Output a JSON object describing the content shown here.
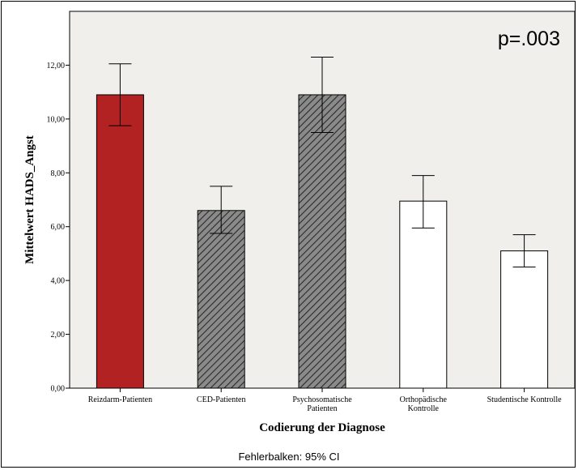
{
  "chart_data": {
    "type": "bar",
    "categories": [
      [
        "Reizdarm-Patienten"
      ],
      [
        "CED-Patienten"
      ],
      [
        "Psychosomatische",
        "Patienten"
      ],
      [
        "Orthopädische",
        "Kontrolle"
      ],
      [
        "Studentische Kontrolle"
      ]
    ],
    "values": [
      10.9,
      6.6,
      10.9,
      6.95,
      5.1
    ],
    "ci_low": [
      9.75,
      5.75,
      9.5,
      5.95,
      4.5
    ],
    "ci_high": [
      12.05,
      7.5,
      12.3,
      7.9,
      5.7
    ],
    "fills": [
      "solid-red",
      "hatched-gray",
      "hatched-gray",
      "white",
      "white"
    ],
    "colors": {
      "red": "#b22222",
      "gray": "#7a7a7a",
      "plot_bg": "#f0efeb"
    },
    "ylim": [
      0,
      14
    ],
    "yticks": [
      "0,00",
      "2,00",
      "4,00",
      "6,00",
      "8,00",
      "10,00",
      "12,00"
    ],
    "ytick_values": [
      0,
      2,
      4,
      6,
      8,
      10,
      12
    ],
    "ylabel": "Mittelwert HADS_Angst",
    "xlabel": "Codierung der Diagnose",
    "annotation": "p=.003",
    "footer": "Fehlerbalken: 95% CI"
  }
}
